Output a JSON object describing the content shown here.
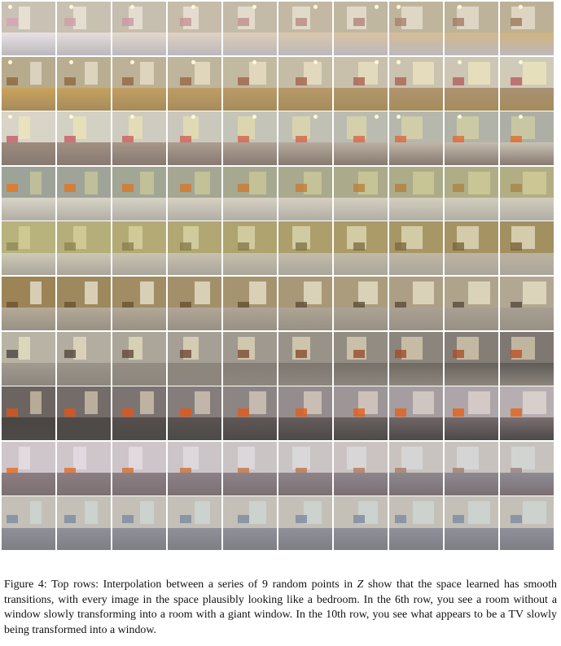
{
  "figure": {
    "caption": {
      "label": "Figure 4:",
      "text_1": " Top rows: Interpolation between a series of 9 random points in ",
      "variable": "Z",
      "text_2": " show that the space learned has smooth transitions, with every image in the space plausibly looking like a bedroom. In the 6th row, you see a room without a window slowly transforming into a room with a giant window. In the 10th row, you see what appears to be a TV slowly being transformed into a window."
    },
    "grid": {
      "rows": [
        {
          "wall": "#c9c2b4",
          "bed": "#e8e2e6",
          "window": "#efe9dd",
          "accent": "#d9a0b4",
          "lamp": true
        },
        {
          "wall": "#b7ab8d",
          "bed": "#c9a35d",
          "window": "#e6dfcc",
          "accent": "#8a6a3c",
          "lamp": true
        },
        {
          "wall": "#d8d4c8",
          "bed": "#9d8a7d",
          "window": "#f0e7b8",
          "accent": "#c85a6a",
          "lamp": true
        },
        {
          "wall": "#9ea39a",
          "bed": "#d9d4c7",
          "window": "#c8c79a",
          "accent": "#e8731d",
          "lamp": false
        },
        {
          "wall": "#b8b27c",
          "bed": "#cfc9b8",
          "window": "#d6d09a",
          "accent": "#8f8a58",
          "lamp": false
        },
        {
          "wall": "#9c8456",
          "bed": "#b5aa98",
          "window": "#e9e5d5",
          "accent": "#6e5430",
          "lamp": false
        },
        {
          "wall": "#b9b3a6",
          "bed": "#a39b90",
          "window": "#e8e2c2",
          "accent": "#4b4640",
          "lamp": false
        },
        {
          "wall": "#6b6460",
          "bed": "#4a4542",
          "window": "#d0c2a8",
          "accent": "#e0521a",
          "lamp": false
        },
        {
          "wall": "#cfc6cc",
          "bed": "#8b7c80",
          "window": "#e9e0e6",
          "accent": "#e66a1a",
          "lamp": false
        },
        {
          "wall": "#c4c0b8",
          "bed": "#8f909a",
          "window": "#cfd8d6",
          "accent": "#7c8aa0",
          "lamp": false
        }
      ],
      "columns": 10
    }
  }
}
